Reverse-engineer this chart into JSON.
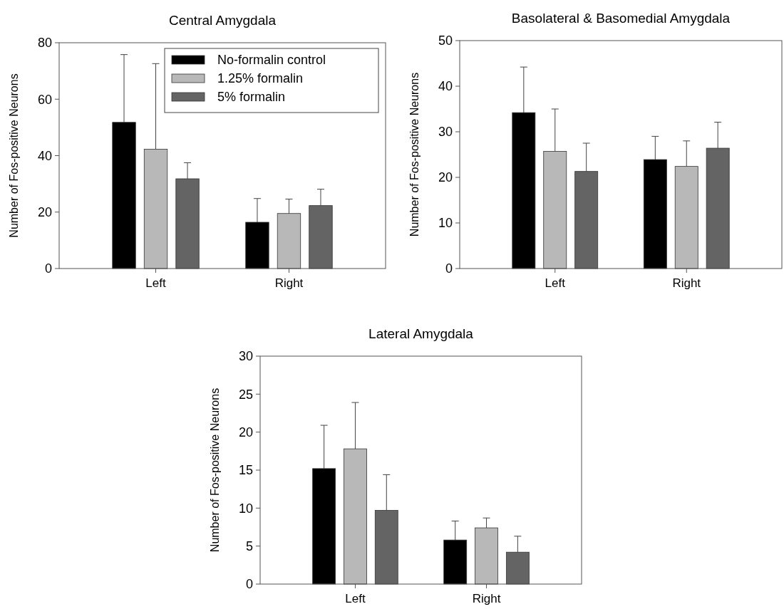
{
  "chart_data": [
    {
      "type": "bar",
      "title": "Central Amygdala",
      "ylabel": "Number of Fos-positive Neurons",
      "categories": [
        "Left",
        "Right"
      ],
      "ylim": [
        0,
        80
      ],
      "yticks": [
        0,
        20,
        40,
        60,
        80
      ],
      "grid": false,
      "legend": "top right",
      "series": [
        {
          "name": "No-formalin control",
          "color": "#000000",
          "values": [
            51.8,
            16.4
          ],
          "errors": [
            [
              51.8,
              75.8
            ],
            [
              16.4,
              24.8
            ]
          ]
        },
        {
          "name": "1.25% formalin",
          "color": "#b8b8b8",
          "values": [
            42.3,
            19.5
          ],
          "errors": [
            [
              42.3,
              72.6
            ],
            [
              19.5,
              24.6
            ]
          ]
        },
        {
          "name": "5% formalin",
          "color": "#646464",
          "values": [
            31.8,
            22.3
          ],
          "errors": [
            [
              31.8,
              37.5
            ],
            [
              22.3,
              28.1
            ]
          ]
        }
      ]
    },
    {
      "type": "bar",
      "title": "Basolateral & Basomedial Amygdala",
      "ylabel": "Number of Fos-positive Neurons",
      "categories": [
        "Left",
        "Right"
      ],
      "ylim": [
        0,
        50
      ],
      "yticks": [
        0,
        10,
        20,
        30,
        40,
        50
      ],
      "grid": false,
      "series": [
        {
          "color": "#000000",
          "values": [
            34.2,
            23.9
          ],
          "errors": [
            [
              34.2,
              44.2
            ],
            [
              23.9,
              29.0
            ]
          ]
        },
        {
          "color": "#b8b8b8",
          "values": [
            25.7,
            22.4
          ],
          "errors": [
            [
              25.7,
              35.0
            ],
            [
              22.4,
              28.0
            ]
          ]
        },
        {
          "color": "#646464",
          "values": [
            21.3,
            26.4
          ],
          "errors": [
            [
              21.3,
              27.5
            ],
            [
              26.4,
              32.1
            ]
          ]
        }
      ]
    },
    {
      "type": "bar",
      "title": "Lateral Amygdala",
      "ylabel": "Number of Fos-positive Neurons",
      "categories": [
        "Left",
        "Right"
      ],
      "ylim": [
        0,
        30
      ],
      "yticks": [
        0,
        5,
        10,
        15,
        20,
        25,
        30
      ],
      "grid": false,
      "series": [
        {
          "color": "#000000",
          "values": [
            15.2,
            5.8
          ],
          "errors": [
            [
              15.2,
              20.9
            ],
            [
              5.8,
              8.3
            ]
          ]
        },
        {
          "color": "#b8b8b8",
          "values": [
            17.8,
            7.4
          ],
          "errors": [
            [
              17.8,
              23.9
            ],
            [
              7.4,
              8.7
            ]
          ]
        },
        {
          "color": "#646464",
          "values": [
            9.7,
            4.2
          ],
          "errors": [
            [
              9.7,
              14.4
            ],
            [
              4.2,
              6.3
            ]
          ]
        }
      ]
    }
  ]
}
